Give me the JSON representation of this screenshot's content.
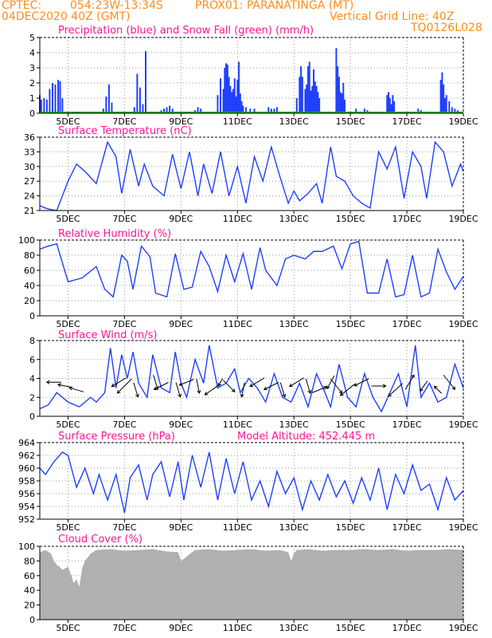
{
  "header": {
    "source": "CPTEC:",
    "coords": "054:23W-13:34S",
    "location": "PROX01: PARANATINGA (MT)",
    "run": "04DEC2020 40Z (GMT)",
    "grid_note": "Vertical Grid Line: 40Z",
    "code": "TQ0126L028"
  },
  "colors": {
    "header": "#ff8c1a",
    "title": "#ff1493",
    "precip": "#1f3fff",
    "snow": "#1aaa1a",
    "line": "#1f3fff",
    "cloud": "#b0b0b0",
    "wind_arrow": "#000000"
  },
  "chart_data": [
    {
      "type": "bar",
      "title": "Precipitation (blue) and Snow Fall (green) (mm/h)",
      "xlabel": "",
      "ylabel": "",
      "x_tick_labels": [
        "5DEC",
        "7DEC",
        "9DEC",
        "11DEC",
        "13DEC",
        "15DEC",
        "17DEC",
        "19DEC"
      ],
      "ylim": [
        0,
        5
      ],
      "yticks": [
        0,
        1,
        2,
        3,
        4,
        5
      ],
      "series": [
        {
          "color": "#1f3fff",
          "x_days": [
            4.0,
            4.05,
            4.15,
            4.25,
            4.35,
            4.45,
            4.55,
            4.65,
            4.72,
            4.8,
            6.25,
            6.35,
            6.45,
            6.55,
            7.35,
            7.45,
            7.55,
            7.65,
            7.75,
            8.3,
            8.4,
            8.5,
            8.6,
            8.7,
            9.5,
            9.6,
            9.7,
            10.3,
            10.4,
            10.5,
            10.55,
            10.6,
            10.65,
            10.7,
            10.75,
            10.8,
            10.85,
            10.9,
            10.95,
            11.0,
            11.05,
            11.1,
            11.15,
            11.2,
            11.3,
            11.45,
            11.6,
            12.1,
            12.2,
            12.3,
            12.4,
            13.1,
            13.2,
            13.25,
            13.3,
            13.4,
            13.45,
            13.5,
            13.55,
            13.6,
            13.65,
            13.7,
            13.75,
            13.8,
            13.85,
            13.9,
            14.5,
            14.55,
            14.6,
            14.65,
            14.7,
            14.75,
            14.8,
            15.2,
            15.5,
            15.6,
            16.3,
            16.35,
            16.4,
            16.45,
            16.5,
            16.55,
            17.4,
            17.5,
            18.2,
            18.25,
            18.3,
            18.35,
            18.4,
            18.5,
            18.6,
            18.7,
            18.8
          ],
          "values": [
            1.2,
            0.9,
            1.0,
            0.9,
            1.6,
            2.0,
            1.9,
            2.2,
            2.1,
            1.0,
            0.3,
            1.1,
            1.9,
            0.7,
            0.4,
            2.6,
            1.7,
            0.6,
            4.1,
            0.2,
            0.3,
            0.4,
            0.5,
            0.3,
            0.2,
            0.4,
            0.3,
            1.2,
            2.3,
            1.6,
            3.0,
            3.3,
            3.2,
            2.4,
            1.8,
            1.4,
            1.6,
            2.3,
            1.1,
            2.2,
            3.4,
            1.3,
            0.8,
            0.5,
            0.4,
            0.3,
            0.3,
            0.4,
            0.3,
            0.3,
            0.4,
            1.0,
            2.4,
            3.1,
            2.4,
            1.6,
            1.9,
            3.1,
            3.4,
            1.5,
            1.8,
            2.9,
            2.1,
            1.8,
            1.4,
            1.0,
            4.3,
            3.1,
            2.4,
            1.4,
            1.3,
            2.0,
            0.9,
            0.3,
            0.3,
            0.2,
            1.2,
            1.4,
            1.0,
            0.6,
            1.2,
            0.8,
            0.3,
            0.2,
            2.2,
            2.7,
            1.9,
            1.0,
            1.2,
            0.8,
            0.4,
            0.3,
            0.2
          ]
        },
        {
          "color": "#1aaa1a",
          "values": [
            0
          ]
        }
      ]
    },
    {
      "type": "line",
      "title": "Surface Temperature (nC)",
      "xlabel": "",
      "ylabel": "",
      "ylim": [
        21,
        36
      ],
      "yticks": [
        21,
        24,
        27,
        30,
        33,
        36
      ],
      "x_days": [
        4.0,
        4.2,
        4.4,
        4.6,
        5.0,
        5.3,
        5.6,
        6.0,
        6.4,
        6.7,
        6.9,
        7.2,
        7.5,
        7.7,
        8.0,
        8.4,
        8.7,
        9.0,
        9.3,
        9.6,
        9.8,
        10.1,
        10.4,
        10.7,
        11.0,
        11.3,
        11.6,
        11.9,
        12.2,
        12.5,
        12.8,
        13.0,
        13.2,
        13.5,
        13.8,
        14.0,
        14.3,
        14.5,
        14.8,
        15.1,
        15.4,
        15.7,
        16.0,
        16.3,
        16.6,
        16.9,
        17.2,
        17.5,
        17.7,
        18.0,
        18.3,
        18.6,
        18.9,
        19.0
      ],
      "values": [
        22.0,
        21.5,
        21.2,
        21.0,
        27.0,
        30.5,
        29.0,
        26.5,
        35.0,
        32.0,
        24.5,
        33.5,
        26.0,
        30.5,
        26.0,
        24.0,
        32.5,
        25.5,
        33.0,
        24.0,
        30.5,
        24.5,
        33.0,
        24.0,
        30.0,
        22.5,
        32.0,
        27.0,
        34.0,
        28.0,
        22.5,
        25.0,
        23.0,
        24.5,
        26.5,
        22.5,
        34.0,
        28.0,
        27.0,
        24.0,
        22.5,
        21.5,
        33.0,
        29.5,
        34.0,
        23.5,
        33.0,
        30.0,
        23.5,
        35.0,
        33.0,
        26.0,
        30.5,
        29.0
      ]
    },
    {
      "type": "line",
      "title": "Relative Humidity (%)",
      "xlabel": "",
      "ylabel": "",
      "ylim": [
        0,
        100
      ],
      "yticks": [
        0,
        20,
        40,
        60,
        80,
        100
      ],
      "x_days": [
        4.0,
        4.3,
        4.6,
        4.8,
        5.0,
        5.5,
        6.0,
        6.3,
        6.6,
        6.9,
        7.1,
        7.3,
        7.6,
        7.9,
        8.1,
        8.5,
        8.8,
        9.1,
        9.4,
        9.7,
        10.0,
        10.3,
        10.6,
        10.9,
        11.2,
        11.5,
        11.8,
        12.0,
        12.4,
        12.7,
        13.0,
        13.4,
        13.7,
        14.0,
        14.4,
        14.7,
        15.0,
        15.3,
        15.6,
        16.0,
        16.3,
        16.6,
        16.9,
        17.2,
        17.5,
        17.8,
        18.1,
        18.4,
        18.7,
        19.0
      ],
      "values": [
        88.0,
        92.0,
        95.0,
        70.0,
        45.0,
        50.0,
        65.0,
        35.0,
        25.0,
        80.0,
        72.0,
        35.0,
        92.0,
        78.0,
        30.0,
        25.0,
        82.0,
        35.0,
        38.0,
        85.0,
        65.0,
        32.0,
        80.0,
        45.0,
        82.0,
        35.0,
        90.0,
        60.0,
        40.0,
        75.0,
        80.0,
        75.0,
        85.0,
        85.0,
        92.0,
        62.0,
        95.0,
        98.0,
        30.0,
        30.0,
        75.0,
        25.0,
        28.0,
        80.0,
        25.0,
        30.0,
        88.0,
        58.0,
        35.0,
        52.0
      ]
    },
    {
      "type": "line",
      "title": "Surface Wind (m/s)",
      "xlabel": "",
      "ylabel": "",
      "ylim": [
        0,
        8
      ],
      "yticks": [
        0,
        2,
        4,
        6,
        8
      ],
      "x_days": [
        4.0,
        4.3,
        4.6,
        5.0,
        5.4,
        5.8,
        6.0,
        6.3,
        6.5,
        6.7,
        6.9,
        7.1,
        7.3,
        7.5,
        7.8,
        8.0,
        8.3,
        8.6,
        8.8,
        9.0,
        9.2,
        9.5,
        9.8,
        10.0,
        10.3,
        10.6,
        10.9,
        11.1,
        11.4,
        11.7,
        12.0,
        12.3,
        12.6,
        12.9,
        13.2,
        13.5,
        13.8,
        14.1,
        14.3,
        14.6,
        14.9,
        15.2,
        15.5,
        15.8,
        16.1,
        16.4,
        16.7,
        17.0,
        17.3,
        17.5,
        17.8,
        18.1,
        18.4,
        18.7,
        19.0
      ],
      "values": [
        0.8,
        1.2,
        2.5,
        1.5,
        1.0,
        2.0,
        1.5,
        2.5,
        7.2,
        3.0,
        6.5,
        4.0,
        6.8,
        3.5,
        2.0,
        6.5,
        3.0,
        2.5,
        6.8,
        3.5,
        2.0,
        6.0,
        3.5,
        7.5,
        3.0,
        3.5,
        5.0,
        2.5,
        4.0,
        3.0,
        1.5,
        4.5,
        2.0,
        1.5,
        3.5,
        1.0,
        4.5,
        2.5,
        1.0,
        5.5,
        2.0,
        1.0,
        4.5,
        2.0,
        0.5,
        2.5,
        4.5,
        1.0,
        7.5,
        2.0,
        3.5,
        1.5,
        2.0,
        5.5,
        3.0
      ],
      "arrows_x_days": [
        4.5,
        4.9,
        5.3,
        6.8,
        7.0,
        7.4,
        8.1,
        8.3,
        8.9,
        9.2,
        9.6,
        10.1,
        10.4,
        10.7,
        11.2,
        11.7,
        12.2,
        12.6,
        13.1,
        13.5,
        13.9,
        14.3,
        14.5,
        14.9,
        15.4,
        16.0,
        16.6,
        17.1,
        17.6,
        18.1,
        18.5
      ],
      "arrows_dx": [
        -1,
        -1,
        -1,
        -1,
        -1,
        0.3,
        0.3,
        -1,
        0.3,
        -1,
        0.2,
        -1,
        -0.3,
        0.8,
        -0.2,
        -1,
        -1,
        0.3,
        -1,
        0.3,
        1,
        -0.5,
        0.8,
        -1,
        -1,
        1,
        -1,
        0.6,
        -0.5,
        -0.5,
        0.8
      ],
      "arrows_dy": [
        0,
        0.2,
        0.3,
        -0.6,
        -1,
        -1,
        -1,
        -0.5,
        -1,
        -0.4,
        -1,
        -0.7,
        -0.5,
        -0.8,
        -1,
        -0.6,
        -0.5,
        -1,
        -0.6,
        -1,
        0.4,
        -0.9,
        -1,
        -0.8,
        -0.5,
        0,
        -0.9,
        1,
        -0.7,
        0.5,
        -1
      ]
    },
    {
      "type": "line",
      "title": "Surface Pressure (hPa)",
      "annotation": "Model Altitude: 452.445 m",
      "xlabel": "",
      "ylabel": "",
      "ylim": [
        952,
        964
      ],
      "yticks": [
        952,
        954,
        956,
        958,
        960,
        962,
        964
      ],
      "x_days": [
        4.0,
        4.2,
        4.5,
        4.8,
        5.0,
        5.3,
        5.6,
        5.9,
        6.1,
        6.4,
        6.7,
        7.0,
        7.2,
        7.5,
        7.8,
        8.0,
        8.3,
        8.6,
        8.9,
        9.1,
        9.4,
        9.7,
        10.0,
        10.3,
        10.6,
        10.9,
        11.2,
        11.5,
        11.8,
        12.1,
        12.4,
        12.7,
        13.0,
        13.3,
        13.6,
        13.9,
        14.2,
        14.5,
        14.8,
        15.1,
        15.4,
        15.7,
        16.0,
        16.3,
        16.6,
        16.9,
        17.2,
        17.5,
        17.8,
        18.1,
        18.4,
        18.7,
        19.0
      ],
      "values": [
        960.0,
        959.0,
        961.0,
        962.5,
        962.0,
        957.0,
        960.0,
        956.0,
        959.0,
        955.0,
        959.0,
        953.0,
        958.5,
        960.5,
        955.0,
        959.0,
        961.0,
        955.5,
        961.0,
        955.0,
        962.0,
        957.0,
        962.5,
        955.0,
        961.5,
        956.0,
        961.0,
        955.0,
        958.0,
        954.0,
        959.5,
        956.0,
        958.5,
        953.5,
        958.0,
        955.0,
        959.0,
        955.5,
        958.0,
        954.5,
        958.5,
        955.0,
        960.0,
        953.5,
        959.0,
        956.0,
        960.5,
        956.5,
        957.5,
        953.5,
        958.5,
        955.0,
        956.5
      ]
    },
    {
      "type": "area",
      "title": "Cloud Cover (%)",
      "xlabel": "",
      "ylabel": "",
      "ylim": [
        0,
        100
      ],
      "yticks": [
        0,
        20,
        40,
        60,
        80,
        100
      ],
      "x_days": [
        4.0,
        4.2,
        4.4,
        4.5,
        4.6,
        4.7,
        4.8,
        4.9,
        5.0,
        5.1,
        5.2,
        5.3,
        5.4,
        5.5,
        5.6,
        5.8,
        6.0,
        6.5,
        7.0,
        7.5,
        8.0,
        8.5,
        8.9,
        9.0,
        9.5,
        10.0,
        10.5,
        11.0,
        11.5,
        12.0,
        12.5,
        12.8,
        12.9,
        13.0,
        13.1,
        13.5,
        14.0,
        14.5,
        15.0,
        15.5,
        16.0,
        16.5,
        17.0,
        17.5,
        18.0,
        18.5,
        19.0
      ],
      "values": [
        92.0,
        95.0,
        90.0,
        80.0,
        75.0,
        72.0,
        68.0,
        70.0,
        72.0,
        62.0,
        50.0,
        55.0,
        45.0,
        70.0,
        80.0,
        90.0,
        95.0,
        96.0,
        94.0,
        95.0,
        96.0,
        93.0,
        92.0,
        80.0,
        95.0,
        96.0,
        94.0,
        95.0,
        96.0,
        94.0,
        95.0,
        92.0,
        80.0,
        90.0,
        95.0,
        96.0,
        94.0,
        95.0,
        95.0,
        96.0,
        95.0,
        96.0,
        94.0,
        95.0,
        95.0,
        96.0,
        95.0
      ]
    }
  ]
}
